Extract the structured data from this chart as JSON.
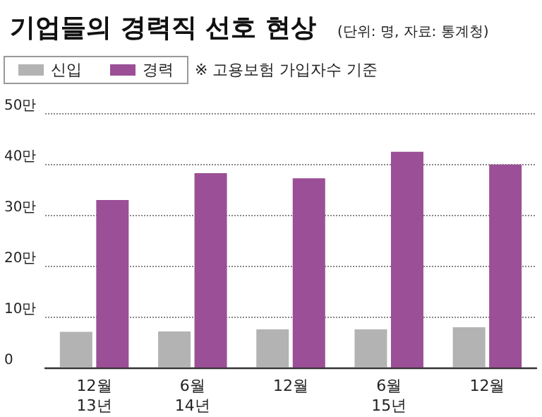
{
  "chart_data": {
    "type": "bar",
    "title": "기업들의 경력직 선호 현상",
    "subtitle": "(단위: 명, 자료: 통계청)",
    "annotations": [
      "※ 고용보험 가입자수 기준"
    ],
    "categories": [
      "12월\n13년",
      "6월\n14년",
      "12월",
      "6월\n15년",
      "12월"
    ],
    "series": [
      {
        "name": "신입",
        "color": "#b3b3b3",
        "values": [
          7.0,
          7.1,
          7.5,
          7.5,
          7.9
        ]
      },
      {
        "name": "경력",
        "color": "#9b4f96",
        "values": [
          32.9,
          38.2,
          37.2,
          42.4,
          39.9
        ]
      }
    ],
    "ylim": [
      0,
      50
    ],
    "yticks": [
      {
        "value": 0,
        "label": "0"
      },
      {
        "value": 10,
        "label": "10만"
      },
      {
        "value": 20,
        "label": "20만"
      },
      {
        "value": 30,
        "label": "30만"
      },
      {
        "value": 40,
        "label": "40만"
      },
      {
        "value": 50,
        "label": "50만"
      }
    ],
    "grid": "y",
    "legend": "top left"
  }
}
